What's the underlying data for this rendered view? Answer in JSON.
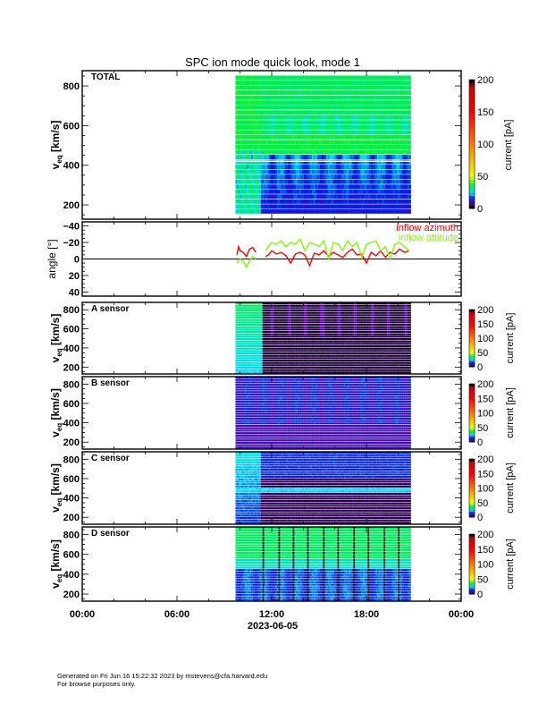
{
  "chart_data": {
    "type": "heatmap",
    "title": "SPC ion mode quick look, mode 1",
    "xlabel": "2023-06-05",
    "x_tick_labels": [
      "00:00",
      "06:00",
      "12:00",
      "18:00",
      "00:00"
    ],
    "x_range_hours": [
      0,
      24
    ],
    "data_coverage_hours": [
      9.7,
      20.8
    ],
    "panels": [
      {
        "id": "total",
        "label": "TOTAL",
        "kind": "spectrogram",
        "ylabel_main": "v",
        "ylabel_sub": "eq",
        "ylabel_unit": " [km/s]",
        "ylim": [
          128,
          877
        ],
        "yticks": [
          "200",
          "400",
          "600",
          "800"
        ],
        "colorbar_label": "current [pA]",
        "colorbar_ticks": [
          "0",
          "50",
          "100",
          "150",
          "200"
        ],
        "crange": [
          0,
          200
        ]
      },
      {
        "id": "angle",
        "kind": "line",
        "ylabel": "angle [°]",
        "ylim": [
          -45,
          45
        ],
        "yticks": [
          "−40",
          "−20",
          "0",
          "20",
          "40"
        ],
        "series": [
          {
            "name": "inflow azimuth",
            "color": "#ff0000",
            "points": [
              [
                9.8,
                5
              ],
              [
                9.9,
                15
              ],
              [
                10.0,
                10
              ],
              [
                10.2,
                8
              ],
              [
                10.4,
                3
              ],
              [
                10.6,
                12
              ],
              [
                10.8,
                14
              ],
              [
                11.0,
                8
              ],
              null,
              [
                11.6,
                3
              ],
              [
                11.8,
                5
              ],
              [
                12.0,
                10
              ],
              [
                12.3,
                6
              ],
              [
                12.6,
                8
              ],
              [
                12.9,
                4
              ],
              [
                13.2,
                -5
              ],
              [
                13.5,
                6
              ],
              [
                13.8,
                8
              ],
              [
                14.1,
                5
              ],
              [
                14.4,
                -8
              ],
              [
                14.7,
                7
              ],
              [
                15.0,
                5
              ],
              [
                15.3,
                10
              ],
              [
                15.6,
                3
              ],
              [
                15.9,
                8
              ],
              [
                16.2,
                5
              ],
              [
                16.5,
                2
              ],
              [
                16.8,
                8
              ],
              [
                17.1,
                12
              ],
              [
                17.4,
                5
              ],
              [
                17.7,
                6
              ],
              [
                18.0,
                -5
              ],
              [
                18.3,
                8
              ],
              [
                18.6,
                4
              ],
              [
                18.9,
                10
              ],
              [
                19.2,
                2
              ],
              [
                19.5,
                8
              ],
              [
                19.8,
                6
              ],
              [
                20.1,
                12
              ],
              [
                20.4,
                8
              ],
              [
                20.7,
                10
              ]
            ]
          },
          {
            "name": "inflow attitude",
            "color": "#80ff00",
            "points": [
              [
                9.8,
                -5
              ],
              [
                10.0,
                0
              ],
              [
                10.2,
                -3
              ],
              [
                10.4,
                -10
              ],
              [
                10.6,
                -2
              ],
              [
                10.8,
                3
              ],
              [
                11.0,
                0
              ],
              null,
              [
                11.6,
                10
              ],
              [
                11.8,
                15
              ],
              [
                12.0,
                20
              ],
              [
                12.3,
                18
              ],
              [
                12.6,
                22
              ],
              [
                12.9,
                15
              ],
              [
                13.2,
                20
              ],
              [
                13.5,
                18
              ],
              [
                13.8,
                24
              ],
              [
                14.1,
                10
              ],
              [
                14.4,
                20
              ],
              [
                14.7,
                18
              ],
              [
                15.0,
                15
              ],
              [
                15.3,
                22
              ],
              [
                15.6,
                0
              ],
              [
                15.9,
                20
              ],
              [
                16.2,
                18
              ],
              [
                16.5,
                10
              ],
              [
                16.8,
                22
              ],
              [
                17.1,
                15
              ],
              [
                17.4,
                20
              ],
              [
                17.7,
                2
              ],
              [
                18.0,
                18
              ],
              [
                18.3,
                20
              ],
              [
                18.6,
                22
              ],
              [
                18.9,
                10
              ],
              [
                19.2,
                15
              ],
              [
                19.5,
                0
              ],
              [
                19.8,
                18
              ],
              [
                20.1,
                20
              ],
              [
                20.4,
                15
              ],
              [
                20.7,
                10
              ]
            ]
          }
        ]
      },
      {
        "id": "a",
        "label": "A sensor",
        "kind": "spectrogram",
        "ylabel_main": "v",
        "ylabel_sub": "eq",
        "ylabel_unit": " [km/s]",
        "ylim": [
          128,
          877
        ],
        "yticks": [
          "200",
          "400",
          "600",
          "800"
        ],
        "colorbar_label": "current [pA]",
        "colorbar_ticks": [
          "0",
          "50",
          "100",
          "150",
          "200"
        ],
        "crange": [
          0,
          200
        ]
      },
      {
        "id": "b",
        "label": "B sensor",
        "kind": "spectrogram",
        "ylabel_main": "v",
        "ylabel_sub": "eq",
        "ylabel_unit": " [km/s]",
        "ylim": [
          128,
          877
        ],
        "yticks": [
          "200",
          "400",
          "600",
          "800"
        ],
        "colorbar_label": "current [pA]",
        "colorbar_ticks": [
          "0",
          "50",
          "100",
          "150",
          "200"
        ],
        "crange": [
          0,
          200
        ]
      },
      {
        "id": "c",
        "label": "C sensor",
        "kind": "spectrogram",
        "ylabel_main": "v",
        "ylabel_sub": "eq",
        "ylabel_unit": " [km/s]",
        "ylim": [
          128,
          877
        ],
        "yticks": [
          "200",
          "400",
          "600",
          "800"
        ],
        "colorbar_label": "current [pA]",
        "colorbar_ticks": [
          "0",
          "50",
          "100",
          "150",
          "200"
        ],
        "crange": [
          0,
          200
        ]
      },
      {
        "id": "d",
        "label": "D sensor",
        "kind": "spectrogram",
        "ylabel_main": "v",
        "ylabel_sub": "eq",
        "ylabel_unit": " [km/s]",
        "ylim": [
          128,
          877
        ],
        "yticks": [
          "200",
          "400",
          "600",
          "800"
        ],
        "colorbar_label": "current [pA]",
        "colorbar_ticks": [
          "0",
          "50",
          "100",
          "150",
          "200"
        ],
        "crange": [
          0,
          200
        ]
      }
    ]
  },
  "footer": {
    "line1": "Generated on Fri Jun 16 15:22:32 2023 by mstevens@cfa.harvard.edu",
    "line2": "For browse purposes only."
  }
}
